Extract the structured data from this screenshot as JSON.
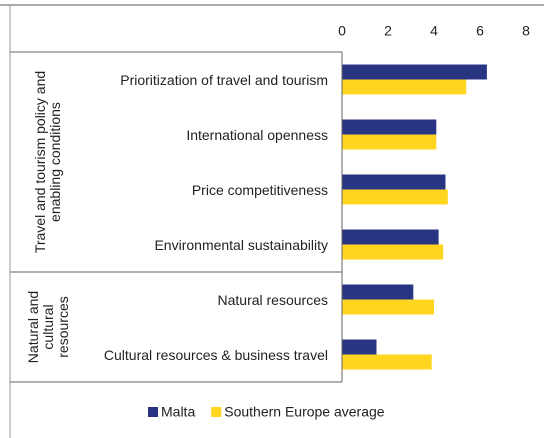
{
  "chart_data": {
    "type": "bar",
    "orientation": "horizontal",
    "groups": [
      {
        "label": "Travel and tourism policy and enabling conditions",
        "categories": [
          "Prioritization of travel and tourism",
          "International openness",
          "Price competitiveness",
          "Environmental sustainability"
        ]
      },
      {
        "label": "Natural and cultural resources",
        "categories": [
          "Natural resources",
          "Cultural resources & business travel"
        ]
      }
    ],
    "series": [
      {
        "name": "Malta",
        "color": "#283583",
        "values": [
          6.3,
          4.1,
          4.5,
          4.2,
          3.1,
          1.5
        ]
      },
      {
        "name": "Southern Europe average",
        "color": "#ffd520",
        "values": [
          5.4,
          4.1,
          4.6,
          4.4,
          4.0,
          3.9
        ]
      }
    ],
    "xlim": [
      0,
      8
    ],
    "xticks": [
      0,
      2,
      4,
      6,
      8
    ],
    "legend": "bottom"
  }
}
